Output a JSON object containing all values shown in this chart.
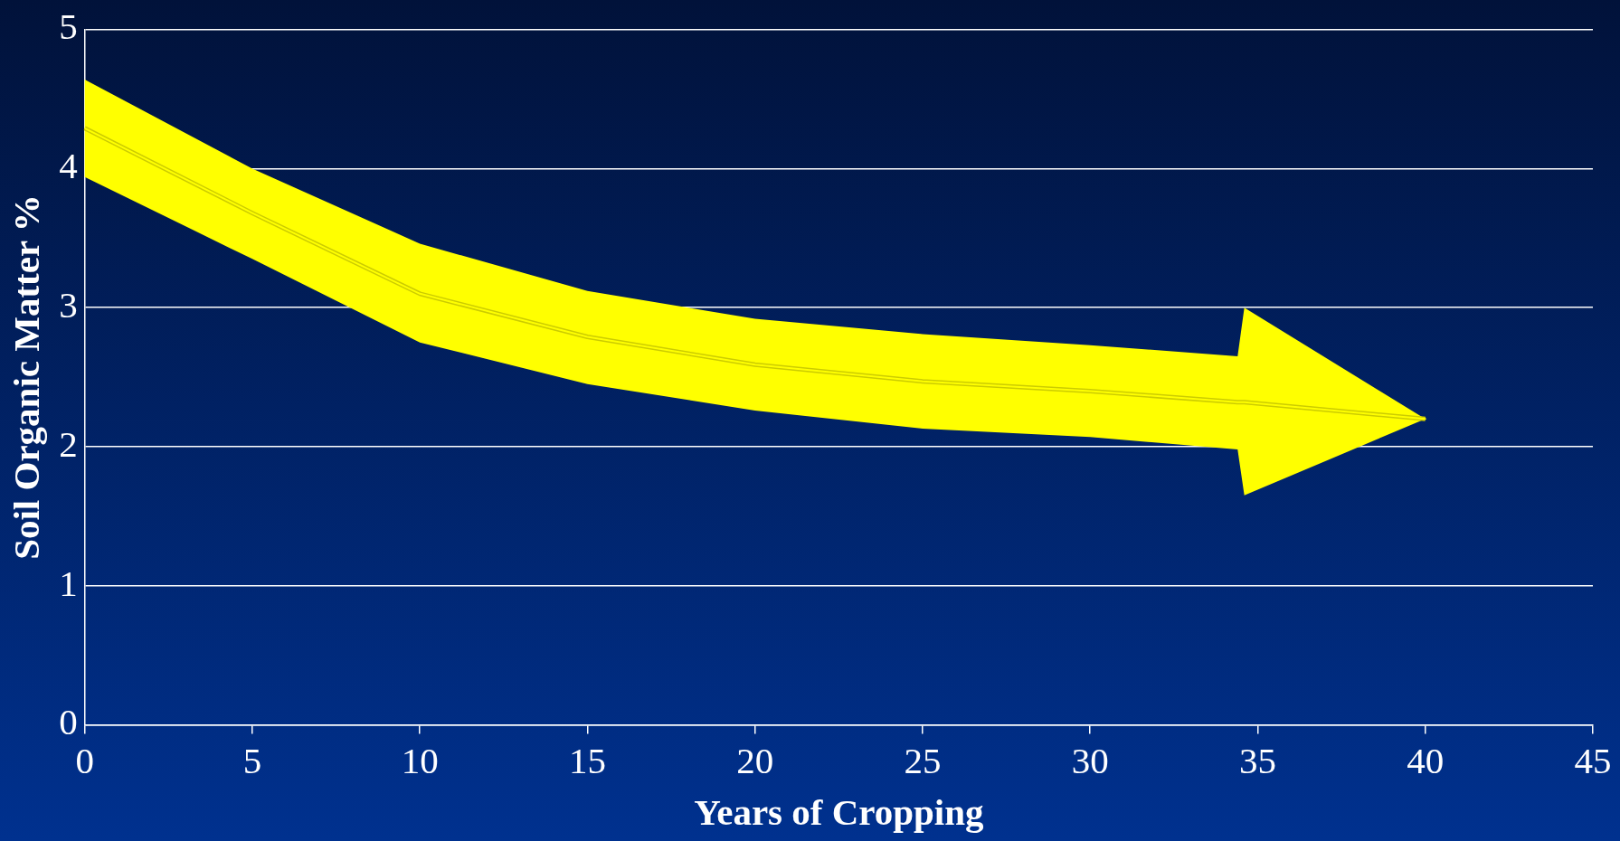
{
  "chart_data": {
    "type": "line",
    "xlabel": "Years of Cropping",
    "ylabel": "Soil Organic Matter %",
    "xlim": [
      0,
      45
    ],
    "xticks": [
      0,
      5,
      10,
      15,
      20,
      25,
      30,
      35,
      40,
      45
    ],
    "ylim": [
      0,
      5
    ],
    "yticks": [
      0,
      1,
      2,
      3,
      4,
      5
    ],
    "grid": "y",
    "legend": false,
    "marker": "none",
    "series": [
      {
        "color": "#ffff00",
        "x": [
          0,
          5,
          10,
          15,
          20,
          25,
          30,
          34.4,
          34.6,
          40
        ],
        "values": [
          4.29,
          3.68,
          3.1,
          2.79,
          2.59,
          2.47,
          2.4,
          2.32,
          2.32,
          2.2
        ],
        "upper": [
          4.64,
          4.0,
          3.46,
          3.12,
          2.92,
          2.81,
          2.73,
          2.65,
          3.0,
          2.2
        ],
        "lower": [
          3.94,
          3.35,
          2.75,
          2.45,
          2.26,
          2.13,
          2.07,
          1.98,
          1.65,
          2.2
        ]
      }
    ]
  }
}
